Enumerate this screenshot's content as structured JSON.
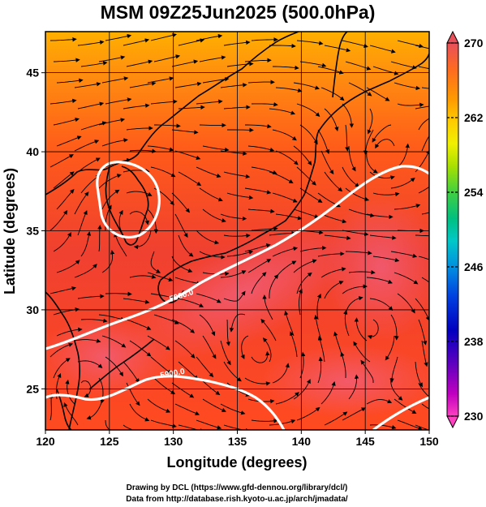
{
  "title": "MSM 09Z25Jun2025 (500.0hPa)",
  "map": {
    "x_axis_label": "Longitude (degrees)",
    "y_axis_label": "Latitude  (degrees)",
    "lon_ticks": [
      "120",
      "125",
      "130",
      "135",
      "140",
      "145",
      "150"
    ],
    "lat_ticks": [
      "25",
      "30",
      "35",
      "40",
      "45"
    ],
    "lon_range": [
      120,
      150
    ],
    "lat_range": [
      22.4,
      47.6
    ],
    "grid_lon": [
      125,
      130,
      135,
      140,
      145
    ],
    "grid_lat": [
      25,
      30,
      35,
      40,
      45
    ],
    "contour_value": "5900.0",
    "contour_color": "#ffffff",
    "field": "temperature (K) with streamlines and 5900 m height contour"
  },
  "colorbar": {
    "ticks": [
      "270",
      "262",
      "254",
      "246",
      "238",
      "230"
    ],
    "min": 230,
    "max": 270,
    "colors_top_to_bottom": [
      "#e8505a",
      "#ff6a1f",
      "#ff9a00",
      "#ffcc00",
      "#f0f000",
      "#a8e000",
      "#40d040",
      "#00c080",
      "#00c8c8",
      "#0090e0",
      "#0040e0",
      "#0000c0",
      "#6000c0",
      "#c000c0",
      "#ff40c0"
    ]
  },
  "credits": {
    "line1": "Drawing by DCL (https://www.gfd-dennou.org/library/dcl/)",
    "line2": "Data from http://database.rish.kyoto-u.ac.jp/arch/jmadata/"
  }
}
